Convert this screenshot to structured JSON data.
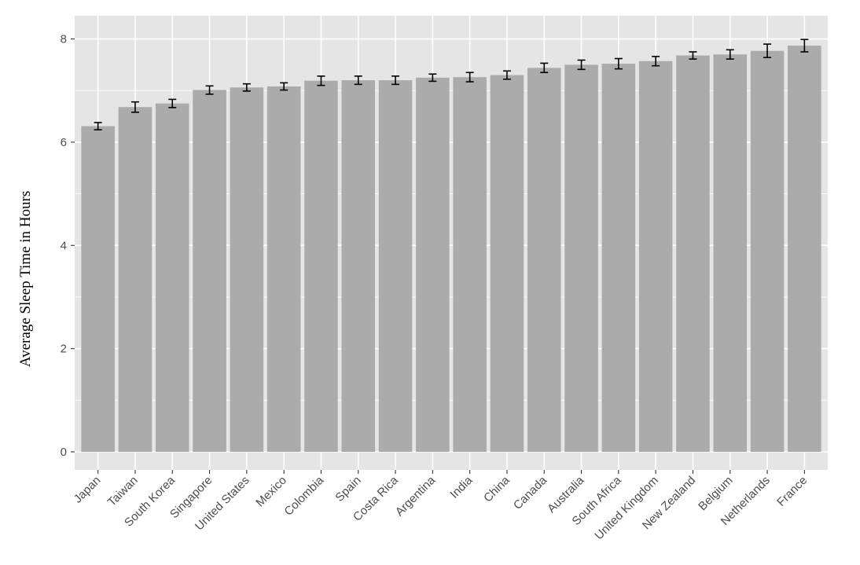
{
  "chart_data": {
    "type": "bar",
    "title": "",
    "xlabel": "",
    "ylabel": "Average Sleep Time in Hours",
    "ylim": [
      -0.35,
      8.45
    ],
    "yticks": [
      0,
      2,
      4,
      6,
      8
    ],
    "grid": true,
    "categories": [
      "Japan",
      "Taiwan",
      "South Korea",
      "Singapore",
      "United States",
      "Mexico",
      "Colombia",
      "Spain",
      "Costa Rica",
      "Argentina",
      "India",
      "China",
      "Canada",
      "Australia",
      "South Africa",
      "United Kingdom",
      "New Zealand",
      "Belgium",
      "Netherlands",
      "France"
    ],
    "values": [
      6.31,
      6.68,
      6.75,
      7.01,
      7.06,
      7.08,
      7.19,
      7.2,
      7.2,
      7.25,
      7.26,
      7.3,
      7.44,
      7.5,
      7.52,
      7.57,
      7.68,
      7.7,
      7.77,
      7.87
    ],
    "error": [
      0.07,
      0.1,
      0.08,
      0.08,
      0.07,
      0.07,
      0.09,
      0.08,
      0.08,
      0.07,
      0.09,
      0.08,
      0.09,
      0.09,
      0.1,
      0.09,
      0.07,
      0.09,
      0.13,
      0.12
    ],
    "colors": {
      "panel": "#e5e5e5",
      "bar": "#ababab",
      "grid": "#ffffff",
      "errorbar": "#000000"
    }
  }
}
